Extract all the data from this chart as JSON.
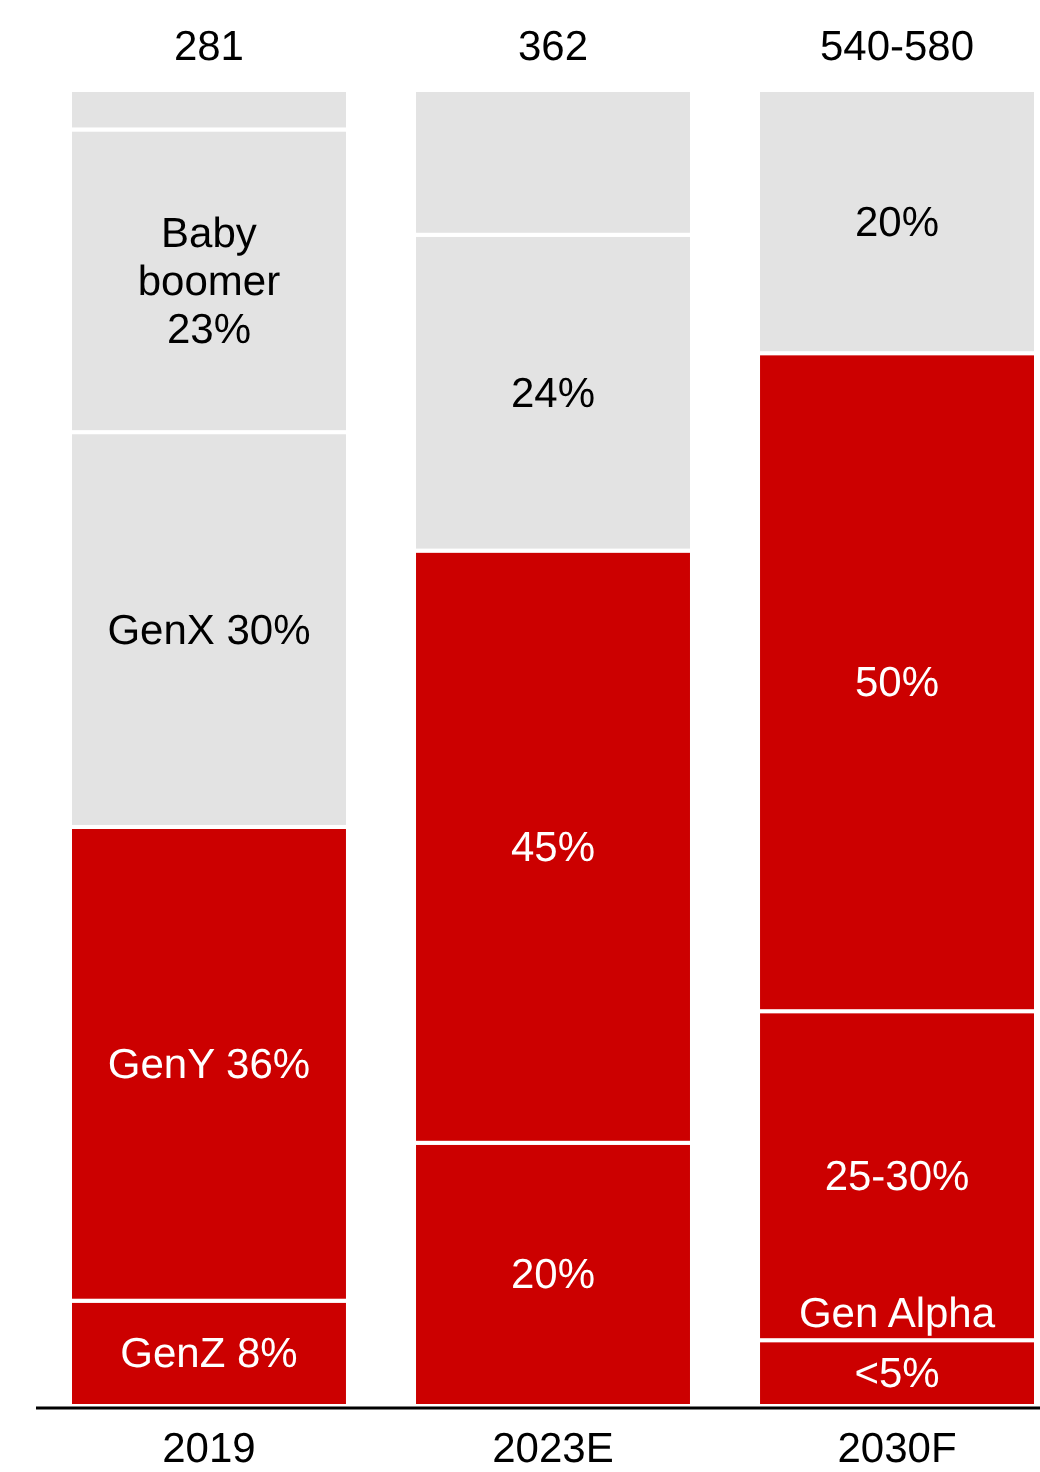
{
  "chart_data": {
    "type": "bar",
    "stacked": true,
    "categories": [
      "2019",
      "2023E",
      "2030F"
    ],
    "series": [
      {
        "values": [
          8,
          20,
          5
        ],
        "colors": [
          "#cc0000",
          "#cc0000",
          "#cc0000"
        ],
        "value_labels": [
          "GenZ 8%",
          "20%",
          "Gen Alpha <5%"
        ]
      },
      {
        "values": [
          36,
          45,
          25
        ],
        "colors": [
          "#cc0000",
          "#cc0000",
          "#cc0000"
        ],
        "value_labels": [
          "GenY 36%",
          "45%",
          "25-30%"
        ]
      },
      {
        "values": [
          30,
          24,
          50
        ],
        "colors": [
          "#e3e3e3",
          "#e3e3e3",
          "#cc0000"
        ],
        "value_labels": [
          "GenX 30%",
          "24%",
          "50%"
        ]
      },
      {
        "values": [
          23,
          11,
          20
        ],
        "colors": [
          "#e3e3e3",
          "#e3e3e3",
          "#e3e3e3"
        ],
        "value_labels": [
          "Baby boomer 23%",
          null,
          "20%"
        ]
      },
      {
        "values": [
          3,
          null,
          null
        ],
        "color": "#e3e3e3"
      }
    ],
    "annotations": [
      "281",
      "362",
      "540-580"
    ]
  }
}
